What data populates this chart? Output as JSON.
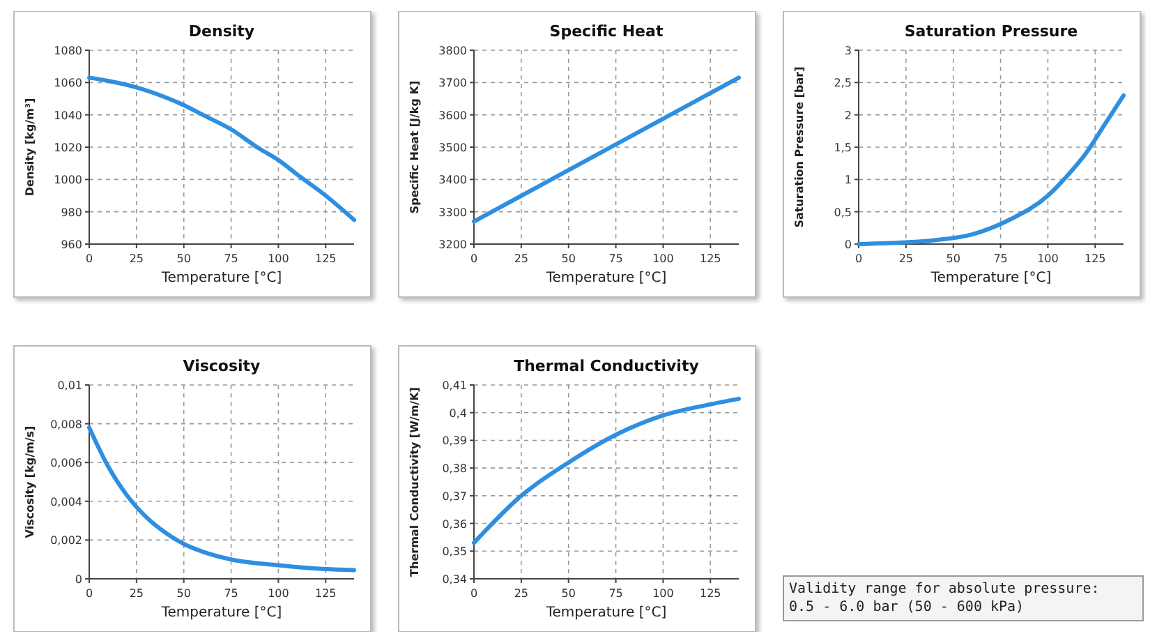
{
  "chart_data": [
    {
      "type": "line",
      "title": "Density",
      "xlabel": "Temperature [°C]",
      "ylabel": "Density [kg/m³]",
      "xlim": [
        0,
        140
      ],
      "xticks": [
        0,
        25,
        50,
        75,
        100,
        125
      ],
      "ylim": [
        960,
        1080
      ],
      "yticks": [
        960,
        980,
        1000,
        1020,
        1040,
        1060,
        1080
      ],
      "grid": true,
      "series": [
        {
          "color": "#2e8fe0",
          "x": [
            0,
            10,
            25,
            40,
            50,
            60,
            75,
            90,
            100,
            110,
            125,
            140
          ],
          "values": [
            1063,
            1061,
            1057,
            1051,
            1046,
            1040,
            1031,
            1019,
            1012,
            1003,
            990,
            975
          ]
        }
      ]
    },
    {
      "type": "line",
      "title": "Specific Heat",
      "xlabel": "Temperature [°C]",
      "ylabel": "Specific Heat [J/kg K]",
      "xlim": [
        0,
        140
      ],
      "xticks": [
        0,
        25,
        50,
        75,
        100,
        125
      ],
      "ylim": [
        3200,
        3800
      ],
      "yticks": [
        3200,
        3300,
        3400,
        3500,
        3600,
        3700,
        3800
      ],
      "grid": true,
      "series": [
        {
          "color": "#2e8fe0",
          "x": [
            0,
            140
          ],
          "values": [
            3270,
            3715
          ]
        }
      ]
    },
    {
      "type": "line",
      "title": "Saturation Pressure",
      "xlabel": "Temperature [°C]",
      "ylabel": "Saturation Pressure [bar]",
      "xlim": [
        0,
        140
      ],
      "xticks": [
        0,
        25,
        50,
        75,
        100,
        125
      ],
      "ylim": [
        0,
        3
      ],
      "yticks": [
        0,
        {
          "value": 0.5,
          "label": "0,5"
        },
        1,
        {
          "value": 1.5,
          "label": "1,5"
        },
        2,
        {
          "value": 2.5,
          "label": "2,5"
        },
        3
      ],
      "grid": true,
      "series": [
        {
          "color": "#2e8fe0",
          "x": [
            0,
            20,
            40,
            60,
            80,
            100,
            110,
            120,
            130,
            140
          ],
          "values": [
            0,
            0.02,
            0.06,
            0.15,
            0.38,
            0.75,
            1.05,
            1.4,
            1.85,
            2.3
          ]
        }
      ]
    },
    {
      "type": "line",
      "title": "Viscosity",
      "xlabel": "Temperature [°C]",
      "ylabel": "Viscosity [kg/m/s]",
      "xlim": [
        0,
        140
      ],
      "xticks": [
        0,
        25,
        50,
        75,
        100,
        125
      ],
      "ylim": [
        0,
        0.01
      ],
      "yticks": [
        0,
        {
          "value": 0.002,
          "label": "0,002"
        },
        {
          "value": 0.004,
          "label": "0,004"
        },
        {
          "value": 0.006,
          "label": "0,006"
        },
        {
          "value": 0.008,
          "label": "0,008"
        },
        {
          "value": 0.01,
          "label": "0,01"
        }
      ],
      "grid": true,
      "series": [
        {
          "color": "#2e8fe0",
          "x": [
            0,
            10,
            20,
            30,
            40,
            50,
            60,
            75,
            100,
            125,
            140
          ],
          "values": [
            0.0078,
            0.0058,
            0.0043,
            0.0032,
            0.0024,
            0.0018,
            0.0014,
            0.001,
            0.0007,
            0.0005,
            0.00045
          ]
        }
      ]
    },
    {
      "type": "line",
      "title": "Thermal Conductivity",
      "xlabel": "Temperature [°C]",
      "ylabel": "Thermal Conductivity [W/m/K]",
      "xlim": [
        0,
        140
      ],
      "xticks": [
        0,
        25,
        50,
        75,
        100,
        125
      ],
      "ylim": [
        0.34,
        0.41
      ],
      "yticks": [
        {
          "value": 0.34,
          "label": "0,34"
        },
        {
          "value": 0.35,
          "label": "0,35"
        },
        {
          "value": 0.36,
          "label": "0,36"
        },
        {
          "value": 0.37,
          "label": "0,37"
        },
        {
          "value": 0.38,
          "label": "0,38"
        },
        {
          "value": 0.39,
          "label": "0,39"
        },
        {
          "value": 0.4,
          "label": "0,4"
        },
        {
          "value": 0.41,
          "label": "0,41"
        }
      ],
      "grid": true,
      "series": [
        {
          "color": "#2e8fe0",
          "x": [
            0,
            25,
            50,
            75,
            100,
            125,
            140
          ],
          "values": [
            0.353,
            0.37,
            0.382,
            0.392,
            0.399,
            0.403,
            0.405
          ]
        }
      ]
    },
    {
      "type": "other",
      "annotations": [
        "Validity range for absolute pressure:",
        "0.5 - 6.0 bar  (50 - 600 kPa)"
      ]
    }
  ]
}
